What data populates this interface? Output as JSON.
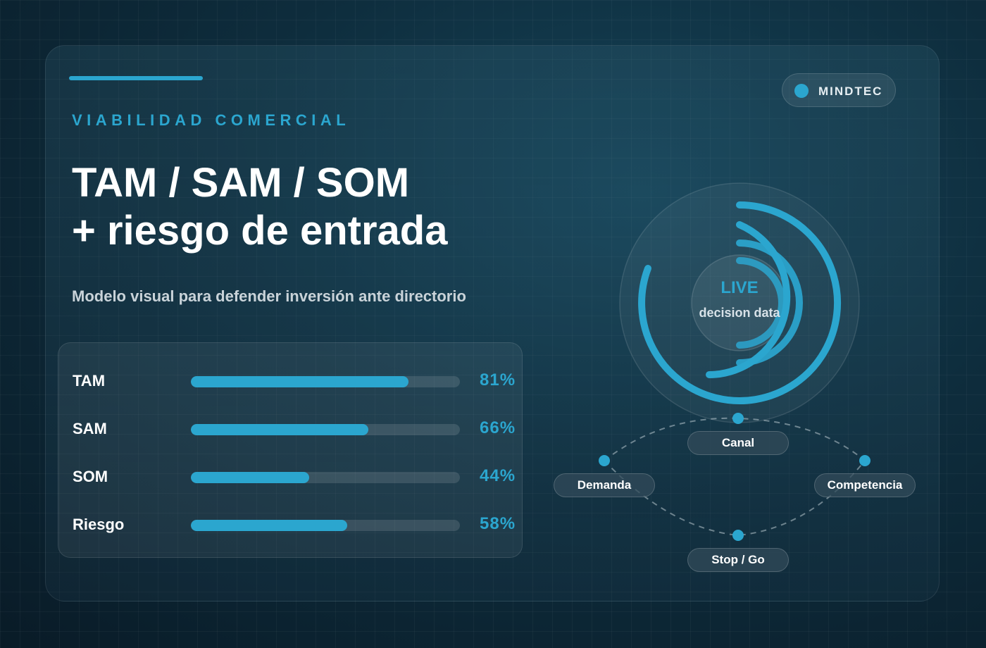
{
  "brand": {
    "name": "MINDTEC",
    "accent": "#2ba6cf"
  },
  "header": {
    "eyebrow": "VIABILIDAD COMERCIAL",
    "title_line1": "TAM / SAM / SOM",
    "title_line2": "+ riesgo de entrada",
    "subtitle": "Modelo visual para defender inversión ante directorio"
  },
  "metrics": [
    {
      "label": "TAM",
      "value": "81%",
      "percent": 81
    },
    {
      "label": "SAM",
      "value": "66%",
      "percent": 66
    },
    {
      "label": "SOM",
      "value": "44%",
      "percent": 44
    },
    {
      "label": "Riesgo",
      "value": "58%",
      "percent": 58
    }
  ],
  "radial": {
    "title": "LIVE",
    "subtitle": "decision data"
  },
  "flow": {
    "nodes": {
      "canal": "Canal",
      "demanda": "Demanda",
      "competencia": "Competencia",
      "stop_go": "Stop / Go"
    }
  }
}
